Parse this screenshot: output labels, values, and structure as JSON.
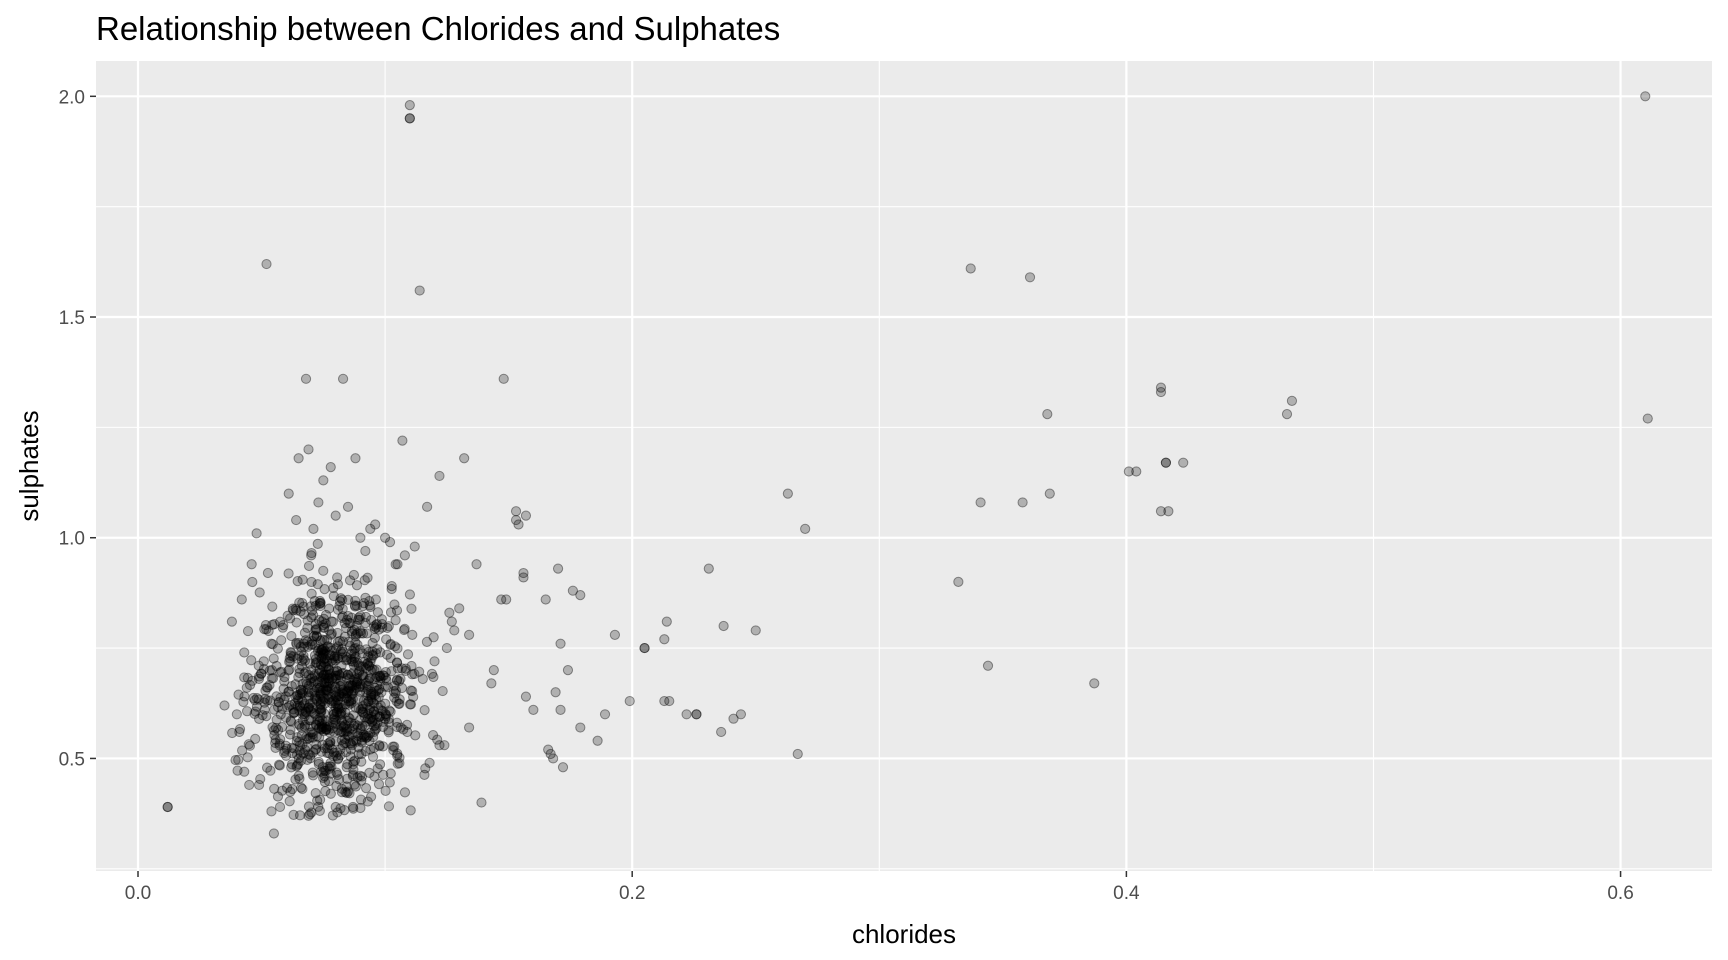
{
  "chart_data": {
    "type": "scatter",
    "title": "Relationship between Chlorides and Sulphates",
    "xlabel": "chlorides",
    "ylabel": "sulphates",
    "xlim": [
      -0.017,
      0.637
    ],
    "ylim": [
      0.245,
      2.08
    ],
    "xticks": [
      0.0,
      0.2,
      0.4,
      0.6
    ],
    "xtick_labels": [
      "0.0",
      "0.2",
      "0.4",
      "0.6"
    ],
    "yticks": [
      0.5,
      1.0,
      1.5,
      2.0
    ],
    "ytick_labels": [
      "0.5",
      "1.0",
      "1.5",
      "2.0"
    ],
    "grid": true,
    "background": "#EBEBEB",
    "gridline_color": "#FFFFFF",
    "point_color": "#000000",
    "point_opacity": 0.25,
    "points": [
      [
        0.012,
        0.39
      ],
      [
        0.012,
        0.39
      ],
      [
        0.052,
        1.62
      ],
      [
        0.068,
        1.36
      ],
      [
        0.083,
        1.36
      ],
      [
        0.11,
        1.98
      ],
      [
        0.11,
        1.95
      ],
      [
        0.11,
        1.95
      ],
      [
        0.114,
        1.56
      ],
      [
        0.148,
        1.36
      ],
      [
        0.107,
        1.22
      ],
      [
        0.132,
        1.18
      ],
      [
        0.088,
        1.18
      ],
      [
        0.065,
        1.18
      ],
      [
        0.069,
        1.2
      ],
      [
        0.075,
        1.13
      ],
      [
        0.078,
        1.16
      ],
      [
        0.122,
        1.14
      ],
      [
        0.061,
        1.1
      ],
      [
        0.117,
        1.07
      ],
      [
        0.048,
        1.01
      ],
      [
        0.153,
        1.06
      ],
      [
        0.157,
        1.05
      ],
      [
        0.153,
        1.04
      ],
      [
        0.154,
        1.03
      ],
      [
        0.137,
        0.94
      ],
      [
        0.156,
        0.92
      ],
      [
        0.17,
        0.93
      ],
      [
        0.156,
        0.91
      ],
      [
        0.147,
        0.86
      ],
      [
        0.149,
        0.86
      ],
      [
        0.165,
        0.86
      ],
      [
        0.176,
        0.88
      ],
      [
        0.179,
        0.87
      ],
      [
        0.205,
        0.75
      ],
      [
        0.205,
        0.75
      ],
      [
        0.214,
        0.81
      ],
      [
        0.213,
        0.77
      ],
      [
        0.193,
        0.78
      ],
      [
        0.171,
        0.76
      ],
      [
        0.174,
        0.7
      ],
      [
        0.144,
        0.7
      ],
      [
        0.143,
        0.67
      ],
      [
        0.157,
        0.64
      ],
      [
        0.16,
        0.61
      ],
      [
        0.169,
        0.65
      ],
      [
        0.171,
        0.61
      ],
      [
        0.179,
        0.57
      ],
      [
        0.166,
        0.52
      ],
      [
        0.167,
        0.51
      ],
      [
        0.168,
        0.5
      ],
      [
        0.172,
        0.48
      ],
      [
        0.139,
        0.4
      ],
      [
        0.186,
        0.54
      ],
      [
        0.189,
        0.6
      ],
      [
        0.199,
        0.63
      ],
      [
        0.213,
        0.63
      ],
      [
        0.215,
        0.63
      ],
      [
        0.222,
        0.6
      ],
      [
        0.226,
        0.6
      ],
      [
        0.226,
        0.6
      ],
      [
        0.231,
        0.93
      ],
      [
        0.237,
        0.8
      ],
      [
        0.236,
        0.56
      ],
      [
        0.241,
        0.59
      ],
      [
        0.244,
        0.6
      ],
      [
        0.25,
        0.79
      ],
      [
        0.263,
        1.1
      ],
      [
        0.27,
        1.02
      ],
      [
        0.267,
        0.51
      ],
      [
        0.332,
        0.9
      ],
      [
        0.337,
        1.61
      ],
      [
        0.341,
        1.08
      ],
      [
        0.344,
        0.71
      ],
      [
        0.358,
        1.08
      ],
      [
        0.361,
        1.59
      ],
      [
        0.368,
        1.28
      ],
      [
        0.369,
        1.1
      ],
      [
        0.387,
        0.67
      ],
      [
        0.401,
        1.15
      ],
      [
        0.404,
        1.15
      ],
      [
        0.414,
        1.34
      ],
      [
        0.414,
        1.33
      ],
      [
        0.416,
        1.17
      ],
      [
        0.416,
        1.17
      ],
      [
        0.423,
        1.17
      ],
      [
        0.414,
        1.06
      ],
      [
        0.417,
        1.06
      ],
      [
        0.465,
        1.28
      ],
      [
        0.467,
        1.31
      ],
      [
        0.61,
        2.0
      ],
      [
        0.611,
        1.27
      ],
      [
        0.055,
        0.33
      ],
      [
        0.069,
        0.37
      ],
      [
        0.054,
        0.38
      ],
      [
        0.08,
        0.39
      ],
      [
        0.087,
        0.39
      ],
      [
        0.043,
        0.47
      ],
      [
        0.045,
        0.44
      ],
      [
        0.049,
        0.44
      ],
      [
        0.035,
        0.62
      ],
      [
        0.038,
        0.81
      ],
      [
        0.042,
        0.86
      ],
      [
        0.043,
        0.74
      ],
      [
        0.044,
        0.66
      ],
      [
        0.046,
        0.94
      ],
      [
        0.04,
        0.6
      ],
      [
        0.041,
        0.56
      ],
      [
        0.124,
        0.53
      ],
      [
        0.122,
        0.53
      ],
      [
        0.118,
        0.49
      ],
      [
        0.125,
        0.75
      ],
      [
        0.128,
        0.79
      ],
      [
        0.13,
        0.84
      ],
      [
        0.126,
        0.83
      ],
      [
        0.127,
        0.81
      ],
      [
        0.134,
        0.78
      ],
      [
        0.134,
        0.57
      ],
      [
        0.12,
        0.72
      ],
      [
        0.111,
        0.78
      ],
      [
        0.112,
        0.98
      ],
      [
        0.1,
        1.0
      ],
      [
        0.102,
        0.99
      ],
      [
        0.096,
        1.03
      ],
      [
        0.094,
        1.02
      ],
      [
        0.085,
        1.07
      ],
      [
        0.073,
        1.08
      ],
      [
        0.071,
        1.02
      ],
      [
        0.064,
        1.04
      ],
      [
        0.08,
        1.05
      ],
      [
        0.09,
        1.0
      ],
      [
        0.105,
        0.94
      ],
      [
        0.108,
        0.96
      ],
      [
        0.092,
        0.97
      ]
    ],
    "cluster": {
      "count": 1050,
      "x_center": 0.079,
      "x_sd": 0.0155,
      "y_center": 0.63,
      "y_sd": 0.12,
      "x_range": [
        0.036,
        0.125
      ],
      "y_range": [
        0.37,
        1.0
      ]
    }
  }
}
